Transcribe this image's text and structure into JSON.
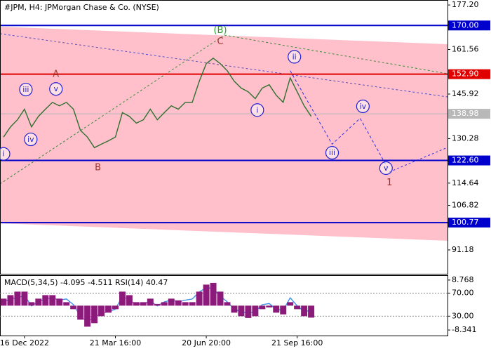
{
  "chart_data": [
    {
      "type": "line",
      "title": "#JPM, H4:  JPMorgan Chase & Co. (NYSE)",
      "categories": [
        null,
        null,
        null,
        "16 Dec 2022",
        null,
        null,
        null,
        null,
        null,
        null,
        null,
        null,
        null,
        null,
        null,
        null,
        "21 Mar 16:00",
        null,
        null,
        null,
        null,
        null,
        null,
        null,
        null,
        null,
        null,
        null,
        null,
        "20 Jun 20:00",
        null,
        null,
        null,
        null,
        null,
        null,
        null,
        null,
        null,
        null,
        null,
        null,
        "21 Sep 16:00",
        null,
        null,
        null,
        null,
        null,
        null,
        null,
        null,
        null,
        null,
        null,
        null,
        null,
        null,
        null,
        null,
        null,
        null,
        null,
        null,
        null
      ],
      "series": [
        {
          "color": "#2f6f2f",
          "values": [
            130.8,
            134.4,
            136.9,
            140.6,
            134.4,
            138.1,
            140.6,
            143.0,
            141.8,
            143.0,
            140.6,
            133.2,
            130.8,
            127.1,
            128.3,
            129.5,
            130.8,
            139.4,
            138.1,
            135.7,
            136.9,
            140.6,
            136.9,
            139.4,
            141.8,
            140.6,
            143.0,
            143.0,
            150.4,
            156.6,
            158.5,
            156.6,
            154.1,
            150.4,
            148.0,
            146.7,
            144.3,
            148.0,
            149.2,
            145.5,
            143.0,
            151.6,
            146.7,
            141.8,
            138.1,
            null,
            null,
            null,
            null,
            null,
            null,
            null,
            null,
            null,
            null,
            null,
            null,
            null,
            null,
            null,
            null,
            null,
            null,
            null
          ]
        },
        {
          "color": "#3030e0",
          "dashed": true,
          "x": [
            41,
            47,
            51,
            55
          ],
          "values": [
            154.1,
            128.3,
            137.4,
            119.7
          ]
        }
      ],
      "ylim": [
        82.8,
        178.7
      ],
      "yticks": [
        {
          "value": 177.2,
          "label": "177.20"
        },
        161.56,
        145.92,
        130.28,
        114.64,
        106.82,
        91.18
      ],
      "levels": [
        {
          "value": 170,
          "label": "170.00",
          "color": "#0000cc"
        },
        {
          "value": 152.9,
          "label": "152.90",
          "color": "#e00000"
        },
        {
          "value": 138.98,
          "color": "#b8b8b8"
        },
        {
          "value": 122.6,
          "label": "122.60",
          "color": "#0000cc"
        },
        {
          "value": 100.77,
          "color": "#0000cc"
        }
      ],
      "annotations": [
        {
          "text": "(B)",
          "x": 31,
          "y": 168.4,
          "color": "#2e9a2e"
        },
        {
          "text": "C",
          "x": 31,
          "y": 164.4,
          "color": "#a0322a"
        },
        {
          "text": "A",
          "x": 7.5,
          "y": 152.9,
          "color": "#a0322a"
        },
        {
          "text": "B",
          "x": 13.5,
          "y": 120.2,
          "color": "#a0322a"
        },
        {
          "text": "iii",
          "x": 3.2,
          "y": 147.5,
          "color": "#2020d0",
          "circled": true
        },
        {
          "text": "v",
          "x": 7.5,
          "y": 147.7,
          "color": "#2020d0",
          "circled": true
        },
        {
          "text": "iv",
          "x": 3.9,
          "y": 130.0,
          "color": "#2020d0",
          "circled": true
        },
        {
          "text": "i",
          "x": 0,
          "y": 124.9,
          "color": "#2020d0",
          "circled": true
        },
        {
          "text": "ii",
          "x": 41.6,
          "y": 159.0,
          "color": "#2020d0",
          "circled": true
        },
        {
          "text": "i",
          "x": 36.3,
          "y": 140.3,
          "color": "#2020d0",
          "circled": true
        },
        {
          "text": "iii",
          "x": 47,
          "y": 125.3,
          "color": "#2020d0",
          "circled": true
        },
        {
          "text": "iv",
          "x": 51.4,
          "y": 141.6,
          "color": "#2020d0",
          "circled": true
        },
        {
          "text": "v",
          "x": 54.7,
          "y": 119.9,
          "color": "#2020d0",
          "circled": true
        },
        {
          "text": "1",
          "x": 55.2,
          "y": 114.8,
          "color": "#a0322a"
        }
      ]
    },
    {
      "type": "bar",
      "title": "MACD(5,34,5) -4.095 -4.511 RSI(14) 40.47",
      "series": [
        {
          "color": "#8b1a7a",
          "values": [
            2.4,
            3.6,
            4.8,
            4.8,
            1.2,
            2.4,
            3.6,
            3.6,
            2.4,
            1.2,
            -1.2,
            -4.8,
            -7.2,
            -6.0,
            -3.6,
            -2.4,
            -1.2,
            4.8,
            3.6,
            1.2,
            1.2,
            2.4,
            0.6,
            1.2,
            2.4,
            1.8,
            1.2,
            1.2,
            4.8,
            7.2,
            7.8,
            4.8,
            1.2,
            -2.4,
            -3.6,
            -4.2,
            -3.6,
            -1.2,
            -0.6,
            -2.4,
            -3.0,
            1.2,
            -1.2,
            -3.6,
            -4.1,
            null,
            null,
            null,
            null,
            null,
            null,
            null,
            null,
            null,
            null,
            null,
            null,
            null,
            null,
            null,
            null,
            null,
            null,
            null
          ]
        },
        {
          "color": "#3d8fe8",
          "axis": "y2",
          "type": "line",
          "values": [
            55,
            60,
            62,
            66,
            48,
            55,
            60,
            62,
            58,
            60,
            50,
            30,
            20,
            28,
            35,
            38,
            42,
            65,
            58,
            50,
            52,
            56,
            48,
            55,
            58,
            55,
            58,
            60,
            72,
            80,
            78,
            65,
            55,
            42,
            38,
            35,
            38,
            50,
            52,
            42,
            40,
            62,
            48,
            38,
            40,
            null,
            null,
            null,
            null,
            null,
            null,
            null,
            null,
            null,
            null,
            null,
            null,
            null,
            null,
            null,
            null,
            null,
            null,
            null
          ]
        }
      ],
      "ylim": [
        -10.24,
        10.19
      ],
      "yticks": [
        8.768,
        -8.341
      ],
      "y2lim": [
        -3.9,
        100.3
      ],
      "y2ticks": [
        {
          "value": 70,
          "label": "70.00"
        },
        {
          "value": 30,
          "label": "30.00"
        }
      ]
    }
  ]
}
